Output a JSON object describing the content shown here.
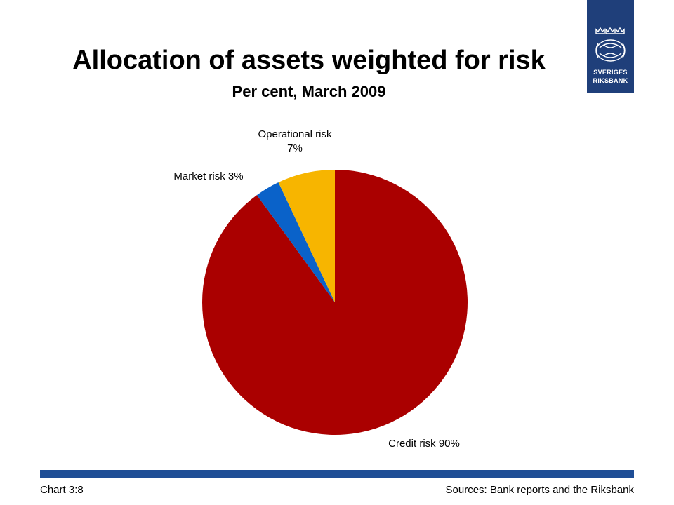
{
  "slide": {
    "title": "Allocation of assets weighted for risk",
    "subtitle": "Per cent, March 2009",
    "footer_left": "Chart 3:8",
    "footer_right": "Sources: Bank reports and the Riksbank"
  },
  "logo": {
    "line1": "SVERIGES",
    "line2": "RIKSBANK",
    "icon": "crowns-emblem-icon",
    "background": "#1f3f7a"
  },
  "chart_data": {
    "type": "pie",
    "title": "",
    "slices": [
      {
        "label_lines": [
          "Credit risk 90%"
        ],
        "value": 90,
        "color": "#aa0000"
      },
      {
        "label_lines": [
          "Market risk 3%"
        ],
        "value": 3,
        "color": "#0a62c9"
      },
      {
        "label_lines": [
          "Operational risk",
          "7%"
        ],
        "value": 7,
        "color": "#f7b500"
      }
    ],
    "start_angle_deg": 0,
    "direction": "clockwise",
    "legend": "none"
  }
}
